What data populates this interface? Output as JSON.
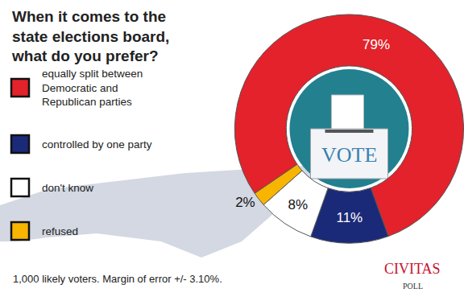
{
  "chart_data": {
    "type": "pie",
    "title": "When it comes to the state elections board, what do you prefer?",
    "categories": [
      "equally split between Democratic and Republican parties",
      "controlled by one party",
      "don't know",
      "refused"
    ],
    "values": [
      79,
      11,
      8,
      2
    ],
    "value_labels": [
      "79%",
      "11%",
      "8%",
      "2%"
    ],
    "colors": [
      "#e3222b",
      "#1b2a78",
      "#ffffff",
      "#f7b500"
    ],
    "data_labels": true,
    "legend": "left",
    "center_text": "VOTE",
    "note": "1,000 likely voters. Margin of error +/- 3.10%.",
    "source": "CIVITAS",
    "source_subtitle": "POLL"
  }
}
